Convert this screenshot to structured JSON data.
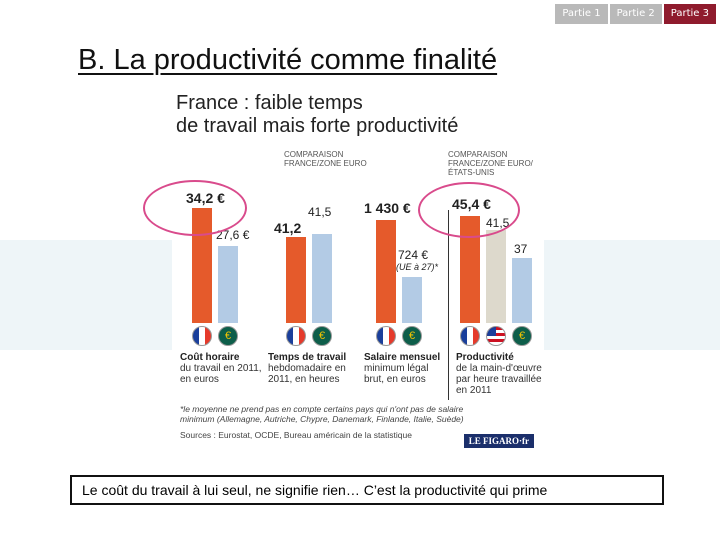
{
  "nav": {
    "items": [
      "Partie 1",
      "Partie 2",
      "Partie 3"
    ],
    "active_index": 2
  },
  "slide_title": "B. La productivité comme finalité",
  "infographic": {
    "title_line1": "France : faible temps",
    "title_line2": "de travail mais forte productivité",
    "header_left": "COMPARAISON FRANCE/ZONE EURO",
    "header_right": "COMPARAISON FRANCE/ZONE EURO/ ÉTATS-UNIS",
    "groups": [
      {
        "values": [
          {
            "label": "34,2 €",
            "value": 34.2,
            "flag": "FR"
          },
          {
            "label": "27,6 €",
            "value": 27.6,
            "flag": "EU"
          }
        ],
        "caption_bold": "Coût horaire",
        "caption": "du travail en 2011, en euros"
      },
      {
        "values": [
          {
            "label": "41,2",
            "value": 41.2,
            "flag": "FR"
          },
          {
            "label": "41,5",
            "value": 41.5,
            "flag": "EU"
          }
        ],
        "caption_bold": "Temps de travail",
        "caption": "hebdomadaire en 2011, en heures"
      },
      {
        "values": [
          {
            "label": "1 430 €",
            "value": 1430,
            "flag": "FR"
          },
          {
            "label": "724 €",
            "value": 724,
            "flag": "EU",
            "note": "(UE à 27)*"
          }
        ],
        "caption_bold": "Salaire mensuel",
        "caption": "minimum légal brut, en euros"
      },
      {
        "values": [
          {
            "label": "45,4 €",
            "value": 45.4,
            "flag": "FR"
          },
          {
            "label": "41,5",
            "value": 41.5,
            "flag": "US"
          },
          {
            "label": "37",
            "value": 37,
            "flag": "EU"
          }
        ],
        "caption_bold": "Productivité",
        "caption": "de la main-d'œuvre par heure travaillée en 2011"
      }
    ],
    "footnote": "*le moyenne ne prend pas en compte certains pays qui n'ont pas de salaire minimum (Allemagne, Autriche, Chypre, Danemark, Finlande, Italie, Suède)",
    "sources": "Sources : Eurostat, OCDE, Bureau américain de la statistique",
    "logo": "LE FIGARO·fr"
  },
  "bottom_text": "Le coût du travail à lui seul, ne signifie rien… C’est la productivité qui prime",
  "colors": {
    "france": "#e55a2b",
    "euro": "#b3cbe5",
    "usa": "#ddd9cc",
    "highlight": "#d94b8c",
    "nav_active": "#8f1b2d"
  }
}
